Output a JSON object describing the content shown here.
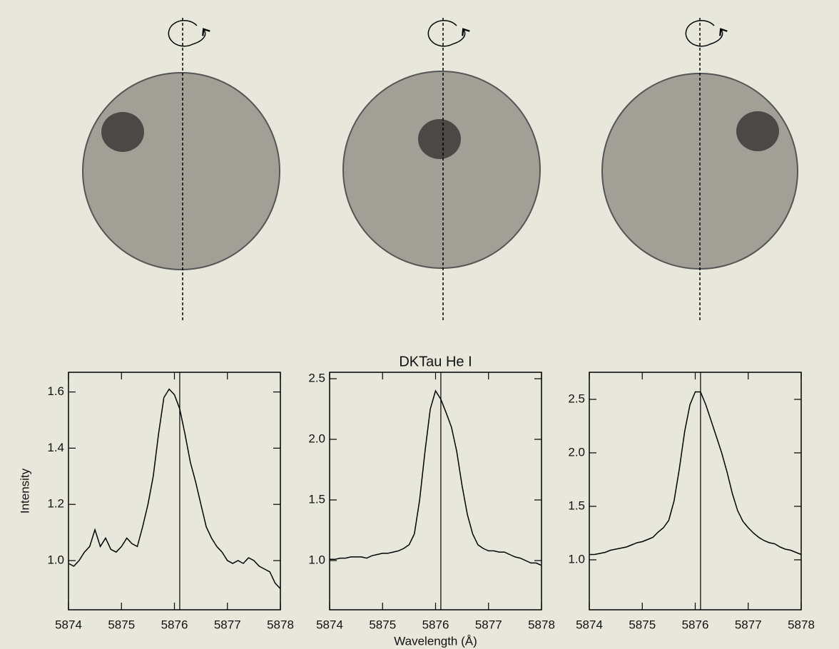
{
  "chart_data": [
    {
      "type": "line",
      "y_label": "Intensity",
      "color": "#000000",
      "vline": 5876.1,
      "x": [
        5874.0,
        5874.1,
        5874.2,
        5874.3,
        5874.4,
        5874.5,
        5874.6,
        5874.7,
        5874.8,
        5874.9,
        5875.0,
        5875.1,
        5875.2,
        5875.3,
        5875.4,
        5875.5,
        5875.6,
        5875.7,
        5875.8,
        5875.9,
        5876.0,
        5876.1,
        5876.2,
        5876.3,
        5876.4,
        5876.5,
        5876.6,
        5876.7,
        5876.8,
        5876.9,
        5877.0,
        5877.1,
        5877.2,
        5877.3,
        5877.4,
        5877.5,
        5877.6,
        5877.7,
        5877.8,
        5877.9,
        5878.0
      ],
      "values": [
        0.99,
        0.98,
        1.0,
        1.03,
        1.05,
        1.11,
        1.05,
        1.08,
        1.04,
        1.03,
        1.05,
        1.08,
        1.06,
        1.05,
        1.12,
        1.2,
        1.3,
        1.45,
        1.58,
        1.61,
        1.59,
        1.54,
        1.45,
        1.35,
        1.28,
        1.2,
        1.12,
        1.08,
        1.05,
        1.03,
        1.0,
        0.99,
        1.0,
        0.99,
        1.01,
        1.0,
        0.98,
        0.97,
        0.96,
        0.92,
        0.9
      ],
      "xlim": [
        5874,
        5878
      ],
      "xticks": [
        5874,
        5875,
        5876,
        5877,
        5878
      ],
      "ylim": [
        0.825,
        1.67
      ],
      "yticks": [
        {
          "value": 1.0,
          "label": "1.0"
        },
        1.2,
        1.4,
        1.6
      ]
    },
    {
      "type": "line",
      "title": "DKTau He I",
      "x_label": "Wavelength (Å)",
      "color": "#000000",
      "vline": 5876.1,
      "x": [
        5874.0,
        5874.1,
        5874.2,
        5874.3,
        5874.4,
        5874.5,
        5874.6,
        5874.7,
        5874.8,
        5874.9,
        5875.0,
        5875.1,
        5875.2,
        5875.3,
        5875.4,
        5875.5,
        5875.6,
        5875.7,
        5875.8,
        5875.9,
        5876.0,
        5876.1,
        5876.2,
        5876.3,
        5876.4,
        5876.5,
        5876.6,
        5876.7,
        5876.8,
        5876.9,
        5877.0,
        5877.1,
        5877.2,
        5877.3,
        5877.4,
        5877.5,
        5877.6,
        5877.7,
        5877.8,
        5877.9,
        5878.0
      ],
      "values": [
        1.01,
        1.01,
        1.02,
        1.02,
        1.03,
        1.03,
        1.03,
        1.02,
        1.04,
        1.05,
        1.06,
        1.06,
        1.07,
        1.08,
        1.1,
        1.13,
        1.22,
        1.5,
        1.9,
        2.25,
        2.4,
        2.33,
        2.22,
        2.1,
        1.9,
        1.62,
        1.38,
        1.22,
        1.13,
        1.1,
        1.08,
        1.08,
        1.07,
        1.07,
        1.05,
        1.03,
        1.02,
        1.0,
        0.98,
        0.98,
        0.96
      ],
      "xlim": [
        5874,
        5878
      ],
      "xticks": [
        5874,
        5875,
        5876,
        5877,
        5878
      ],
      "ylim": [
        0.594,
        2.553
      ],
      "yticks": [
        {
          "value": 1.0,
          "label": "1.0"
        },
        1.5,
        {
          "value": 2.0,
          "label": "2.0"
        },
        2.5
      ]
    },
    {
      "type": "line",
      "color": "#000000",
      "vline": 5876.1,
      "x": [
        5874.0,
        5874.1,
        5874.2,
        5874.3,
        5874.4,
        5874.5,
        5874.6,
        5874.7,
        5874.8,
        5874.9,
        5875.0,
        5875.1,
        5875.2,
        5875.3,
        5875.4,
        5875.5,
        5875.6,
        5875.7,
        5875.8,
        5875.9,
        5876.0,
        5876.1,
        5876.2,
        5876.3,
        5876.4,
        5876.5,
        5876.6,
        5876.7,
        5876.8,
        5876.9,
        5877.0,
        5877.1,
        5877.2,
        5877.3,
        5877.4,
        5877.5,
        5877.6,
        5877.7,
        5877.8,
        5877.9,
        5878.0
      ],
      "values": [
        1.05,
        1.05,
        1.06,
        1.07,
        1.09,
        1.1,
        1.11,
        1.12,
        1.14,
        1.16,
        1.17,
        1.19,
        1.21,
        1.26,
        1.3,
        1.37,
        1.55,
        1.85,
        2.2,
        2.45,
        2.57,
        2.57,
        2.45,
        2.3,
        2.15,
        2.0,
        1.82,
        1.62,
        1.46,
        1.36,
        1.3,
        1.25,
        1.21,
        1.18,
        1.16,
        1.15,
        1.12,
        1.1,
        1.09,
        1.07,
        1.05
      ],
      "xlim": [
        5874,
        5878
      ],
      "xticks": [
        5874,
        5875,
        5876,
        5877,
        5878
      ],
      "ylim": [
        0.533,
        2.753
      ],
      "yticks": [
        {
          "value": 1.0,
          "label": "1.0"
        },
        1.5,
        {
          "value": 2.0,
          "label": "2.0"
        },
        2.5
      ]
    }
  ]
}
